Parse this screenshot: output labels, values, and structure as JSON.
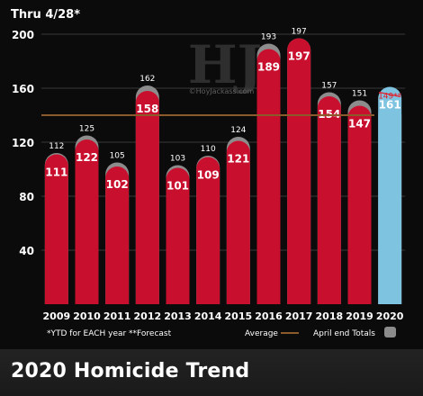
{
  "caption": "2020 Homicide Trend",
  "watermark": {
    "logo_text": "HJ",
    "site_text": "©HoyJackass.com"
  },
  "chart_data": {
    "type": "bar",
    "title": "Thru 4/28*",
    "footnote": "*YTD for EACH year **Forecast",
    "legend": [
      {
        "label": "Average",
        "kind": "line",
        "color": "#8a5a2b"
      },
      {
        "label": "April end Totals",
        "kind": "swatch",
        "color": "#8c8c8c"
      }
    ],
    "categories": [
      "2009",
      "2010",
      "2011",
      "2012",
      "2013",
      "2014",
      "2015",
      "2016",
      "2017",
      "2018",
      "2019",
      "2020"
    ],
    "series": [
      {
        "name": "Thru 4/28*",
        "values": [
          111,
          122,
          102,
          158,
          101,
          109,
          121,
          189,
          197,
          154,
          147,
          161
        ],
        "colors": [
          "#c8102e",
          "#c8102e",
          "#c8102e",
          "#c8102e",
          "#c8102e",
          "#c8102e",
          "#c8102e",
          "#c8102e",
          "#c8102e",
          "#c8102e",
          "#c8102e",
          "#7ec3e0"
        ]
      },
      {
        "name": "April end Totals",
        "values": [
          112,
          125,
          105,
          162,
          103,
          110,
          124,
          193,
          197,
          157,
          151,
          149
        ]
      }
    ],
    "totals_labels": [
      "112",
      "125",
      "105",
      "162",
      "103",
      "110",
      "124",
      "193",
      "197",
      "157",
      "151",
      "149**"
    ],
    "average": 140,
    "ylim": [
      0,
      200
    ],
    "yticks": [
      40,
      80,
      120,
      160,
      200
    ],
    "grid": true,
    "colors": {
      "bar": "#c8102e",
      "highlight_bar": "#7ec3e0",
      "cap": "#8c8c8c",
      "average_line": "#8a5a2b",
      "strike": "#e0212e"
    }
  }
}
